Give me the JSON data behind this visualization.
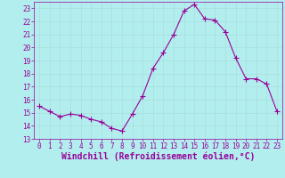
{
  "x": [
    0,
    1,
    2,
    3,
    4,
    5,
    6,
    7,
    8,
    9,
    10,
    11,
    12,
    13,
    14,
    15,
    16,
    17,
    18,
    19,
    20,
    21,
    22,
    23
  ],
  "y": [
    15.5,
    15.1,
    14.7,
    14.9,
    14.8,
    14.5,
    14.3,
    13.8,
    13.6,
    14.9,
    16.3,
    18.4,
    19.6,
    21.0,
    22.8,
    23.3,
    22.2,
    22.1,
    21.2,
    19.2,
    17.6,
    17.6,
    17.2,
    15.1
  ],
  "line_color": "#990099",
  "marker": "+",
  "marker_size": 4,
  "bg_color": "#b2eeee",
  "grid_color": "#aadddd",
  "xlabel": "Windchill (Refroidissement éolien,°C)",
  "xlabel_color": "#990099",
  "ylim": [
    13,
    23.5
  ],
  "xlim": [
    -0.5,
    23.5
  ],
  "yticks": [
    13,
    14,
    15,
    16,
    17,
    18,
    19,
    20,
    21,
    22,
    23
  ],
  "xticks": [
    0,
    1,
    2,
    3,
    4,
    5,
    6,
    7,
    8,
    9,
    10,
    11,
    12,
    13,
    14,
    15,
    16,
    17,
    18,
    19,
    20,
    21,
    22,
    23
  ],
  "tick_color": "#990099",
  "tick_labelsize": 5.5,
  "xlabel_fontsize": 7,
  "linewidth": 0.8,
  "spine_color": "#990099"
}
